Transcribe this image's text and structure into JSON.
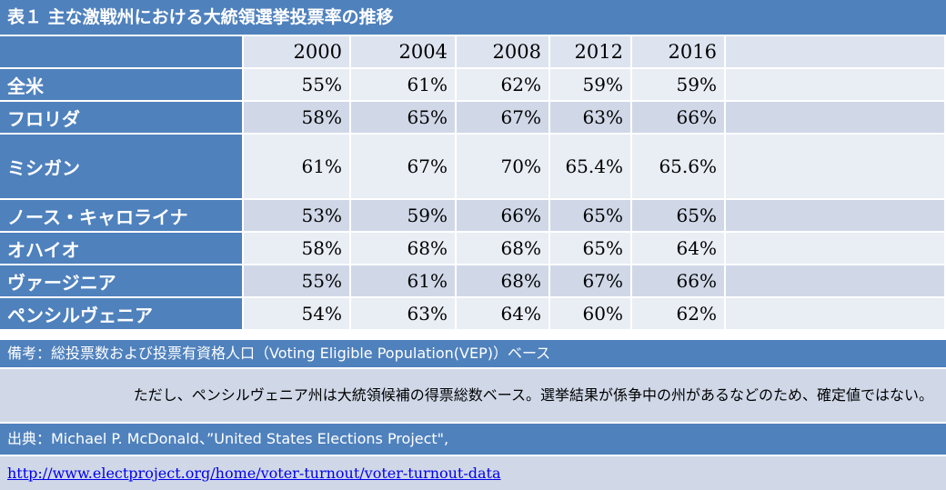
{
  "chart_data": {
    "type": "table",
    "title": "表１ 主な激戦州における大統領選挙投票率の推移",
    "columns": [
      "2000",
      "2004",
      "2008",
      "2012",
      "2016"
    ],
    "rows": [
      {
        "label": "全米",
        "values": [
          "55%",
          "61%",
          "62%",
          "59%",
          "59%"
        ]
      },
      {
        "label": "フロリダ",
        "values": [
          "58%",
          "65%",
          "67%",
          "63%",
          "66%"
        ]
      },
      {
        "label": "ミシガン",
        "values": [
          "61%",
          "67%",
          "70%",
          "65.4%",
          "65.6%"
        ]
      },
      {
        "label": "ノース・キャロライナ",
        "values": [
          "53%",
          "59%",
          "66%",
          "65%",
          "65%"
        ]
      },
      {
        "label": "オハイオ",
        "values": [
          "58%",
          "68%",
          "68%",
          "65%",
          "64%"
        ]
      },
      {
        "label": "ヴァージニア",
        "values": [
          "55%",
          "61%",
          "68%",
          "67%",
          "66%"
        ]
      },
      {
        "label": "ペンシルヴェニア",
        "values": [
          "54%",
          "63%",
          "64%",
          "60%",
          "62%"
        ]
      }
    ],
    "notes": {
      "remark": "備考：総投票数および投票有資格人口（Voting Eligible Population(VEP)）ベース",
      "remark2": "ただし、ペンシルヴェニア州は大統領候補の得票総数ベース。選挙結果が係争中の州があるなどのため、確定値ではない。",
      "source": "出典：Michael P. McDonald、”United States Elections Project\",",
      "url": "http://www.electproject.org/home/voter-turnout/voter-turnout-data"
    }
  },
  "colors": {
    "header_blue": "#4f81bd",
    "band_dark": "#d0d8e8",
    "band_light": "#e9edf4"
  }
}
